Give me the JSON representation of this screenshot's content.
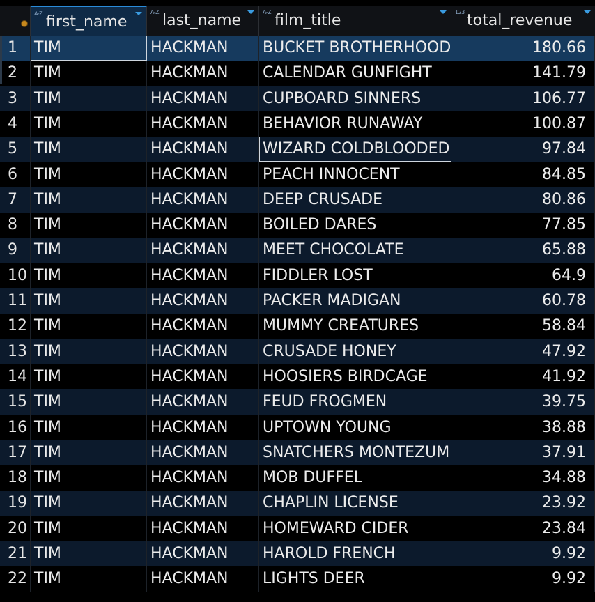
{
  "columns": [
    {
      "type": "A-Z",
      "label": "first_name"
    },
    {
      "type": "A-Z",
      "label": "last_name"
    },
    {
      "type": "A-Z",
      "label": "film_title"
    },
    {
      "type": "123",
      "label": "total_revenue"
    }
  ],
  "colors": {
    "background": "#000000",
    "header": "#101216",
    "row_alt": "#0c1a2c",
    "selected": "#163a5e",
    "accent": "#2a8bd8",
    "corner_icon": "#c7881d"
  },
  "rows": [
    {
      "n": "1",
      "first_name": "TIM",
      "last_name": "HACKMAN",
      "film_title": "BUCKET BROTHERHOOD",
      "total_revenue": "180.66"
    },
    {
      "n": "2",
      "first_name": "TIM",
      "last_name": "HACKMAN",
      "film_title": "CALENDAR GUNFIGHT",
      "total_revenue": "141.79"
    },
    {
      "n": "3",
      "first_name": "TIM",
      "last_name": "HACKMAN",
      "film_title": "CUPBOARD SINNERS",
      "total_revenue": "106.77"
    },
    {
      "n": "4",
      "first_name": "TIM",
      "last_name": "HACKMAN",
      "film_title": "BEHAVIOR RUNAWAY",
      "total_revenue": "100.87"
    },
    {
      "n": "5",
      "first_name": "TIM",
      "last_name": "HACKMAN",
      "film_title": "WIZARD COLDBLOODED",
      "total_revenue": "97.84"
    },
    {
      "n": "6",
      "first_name": "TIM",
      "last_name": "HACKMAN",
      "film_title": "PEACH INNOCENT",
      "total_revenue": "84.85"
    },
    {
      "n": "7",
      "first_name": "TIM",
      "last_name": "HACKMAN",
      "film_title": "DEEP CRUSADE",
      "total_revenue": "80.86"
    },
    {
      "n": "8",
      "first_name": "TIM",
      "last_name": "HACKMAN",
      "film_title": "BOILED DARES",
      "total_revenue": "77.85"
    },
    {
      "n": "9",
      "first_name": "TIM",
      "last_name": "HACKMAN",
      "film_title": "MEET CHOCOLATE",
      "total_revenue": "65.88"
    },
    {
      "n": "10",
      "first_name": "TIM",
      "last_name": "HACKMAN",
      "film_title": "FIDDLER LOST",
      "total_revenue": "64.9"
    },
    {
      "n": "11",
      "first_name": "TIM",
      "last_name": "HACKMAN",
      "film_title": "PACKER MADIGAN",
      "total_revenue": "60.78"
    },
    {
      "n": "12",
      "first_name": "TIM",
      "last_name": "HACKMAN",
      "film_title": "MUMMY CREATURES",
      "total_revenue": "58.84"
    },
    {
      "n": "13",
      "first_name": "TIM",
      "last_name": "HACKMAN",
      "film_title": "CRUSADE HONEY",
      "total_revenue": "47.92"
    },
    {
      "n": "14",
      "first_name": "TIM",
      "last_name": "HACKMAN",
      "film_title": "HOOSIERS BIRDCAGE",
      "total_revenue": "41.92"
    },
    {
      "n": "15",
      "first_name": "TIM",
      "last_name": "HACKMAN",
      "film_title": "FEUD FROGMEN",
      "total_revenue": "39.75"
    },
    {
      "n": "16",
      "first_name": "TIM",
      "last_name": "HACKMAN",
      "film_title": "UPTOWN YOUNG",
      "total_revenue": "38.88"
    },
    {
      "n": "17",
      "first_name": "TIM",
      "last_name": "HACKMAN",
      "film_title": "SNATCHERS MONTEZUM",
      "total_revenue": "37.91"
    },
    {
      "n": "18",
      "first_name": "TIM",
      "last_name": "HACKMAN",
      "film_title": "MOB DUFFEL",
      "total_revenue": "34.88"
    },
    {
      "n": "19",
      "first_name": "TIM",
      "last_name": "HACKMAN",
      "film_title": "CHAPLIN LICENSE",
      "total_revenue": "23.92"
    },
    {
      "n": "20",
      "first_name": "TIM",
      "last_name": "HACKMAN",
      "film_title": "HOMEWARD CIDER",
      "total_revenue": "23.84"
    },
    {
      "n": "21",
      "first_name": "TIM",
      "last_name": "HACKMAN",
      "film_title": "HAROLD FRENCH",
      "total_revenue": "9.92"
    },
    {
      "n": "22",
      "first_name": "TIM",
      "last_name": "HACKMAN",
      "film_title": "LIGHTS DEER",
      "total_revenue": "9.92"
    }
  ]
}
